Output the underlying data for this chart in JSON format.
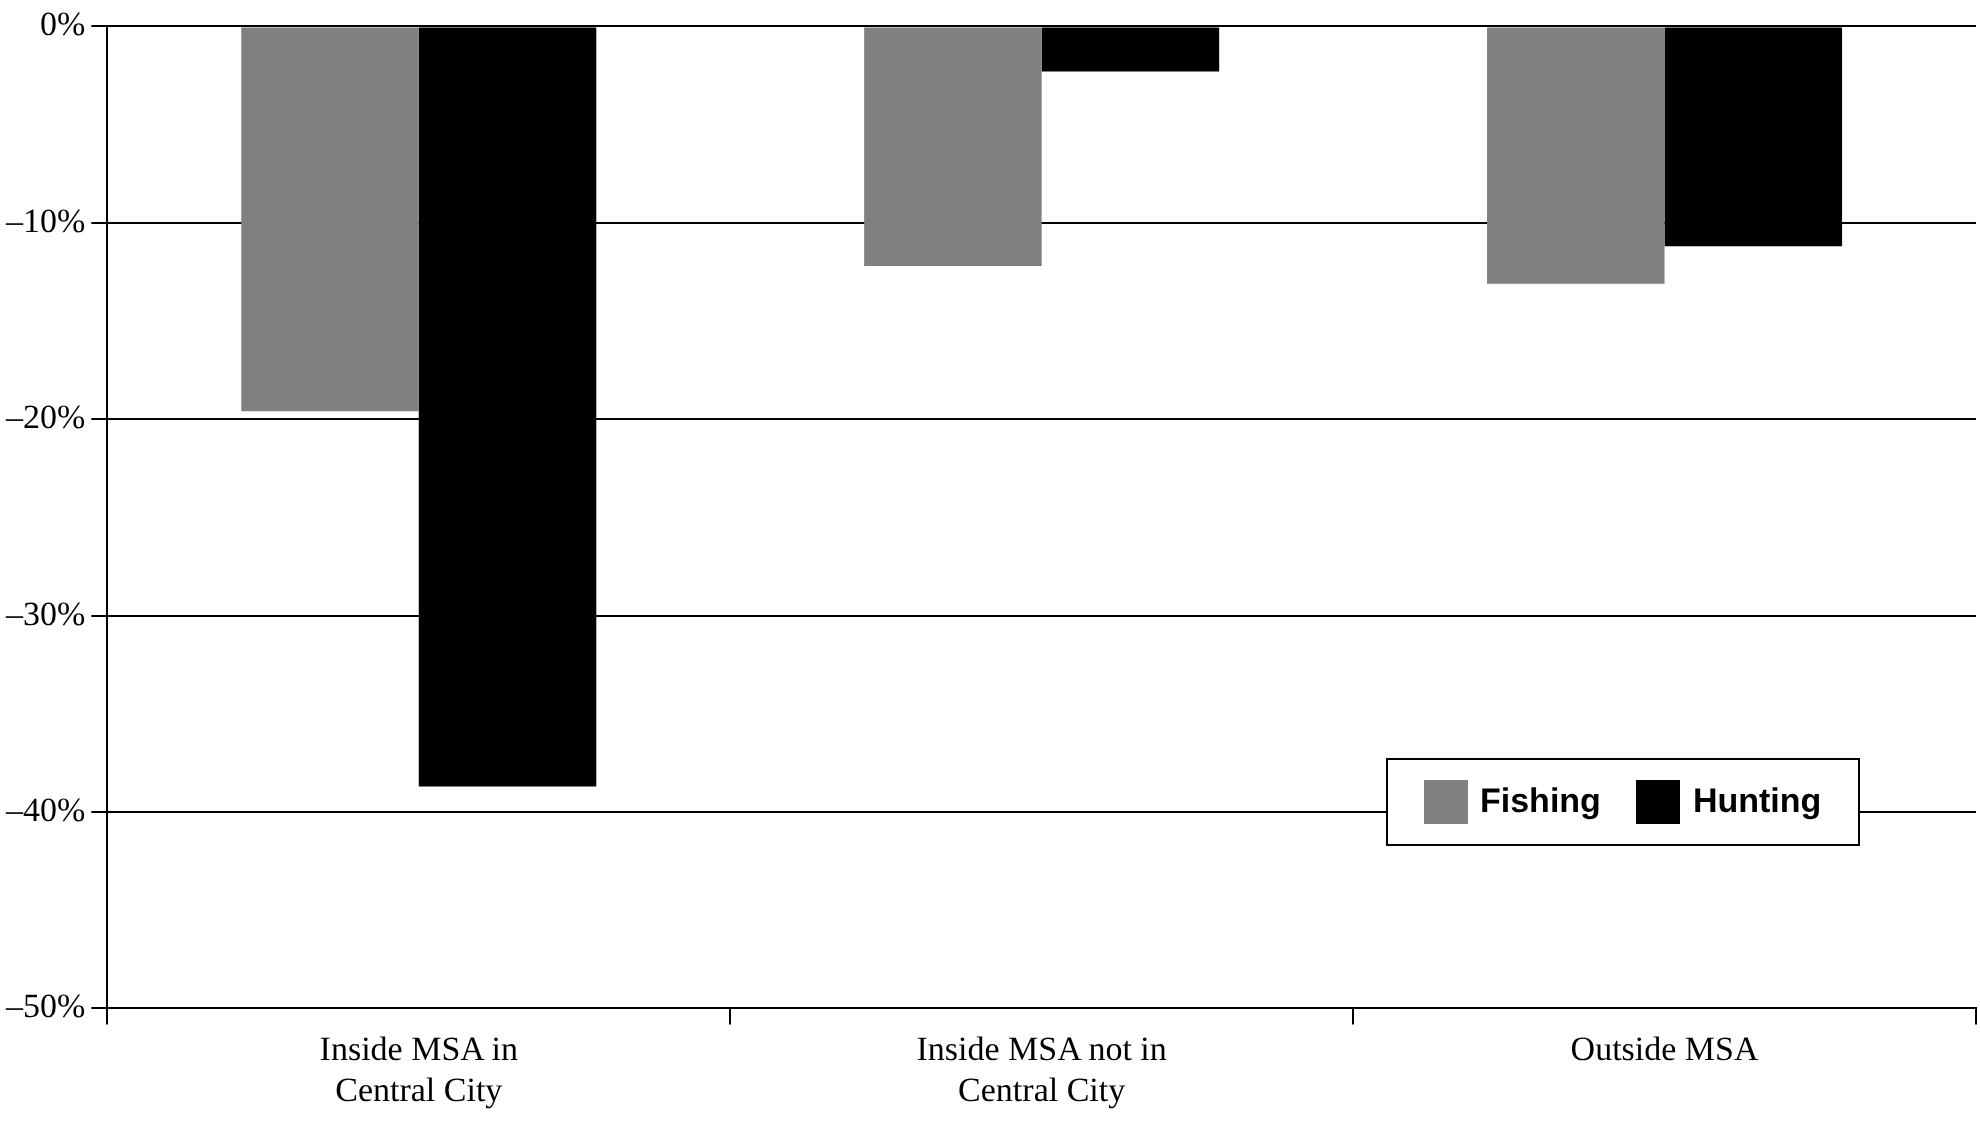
{
  "chart_data": {
    "type": "bar",
    "categories": [
      "Inside MSA in\nCentral City",
      "Inside MSA not in\nCentral City",
      "Outside MSA"
    ],
    "series": [
      {
        "name": "Fishing",
        "color": "#808080",
        "values": [
          -19.6,
          -12.2,
          -13.1
        ]
      },
      {
        "name": "Hunting",
        "color": "#000000",
        "values": [
          -38.7,
          -2.3,
          -11.2
        ]
      }
    ],
    "ylim": [
      -50,
      0
    ],
    "yticks": [
      {
        "value": -50,
        "label": "–50%"
      },
      {
        "value": -40,
        "label": "–40%"
      },
      {
        "value": -30,
        "label": "–30%"
      },
      {
        "value": -20,
        "label": "–20%"
      },
      {
        "value": -10,
        "label": "–10%"
      },
      {
        "value": 0,
        "label": "0%"
      }
    ],
    "grid": "y",
    "legend": "bottom right"
  }
}
